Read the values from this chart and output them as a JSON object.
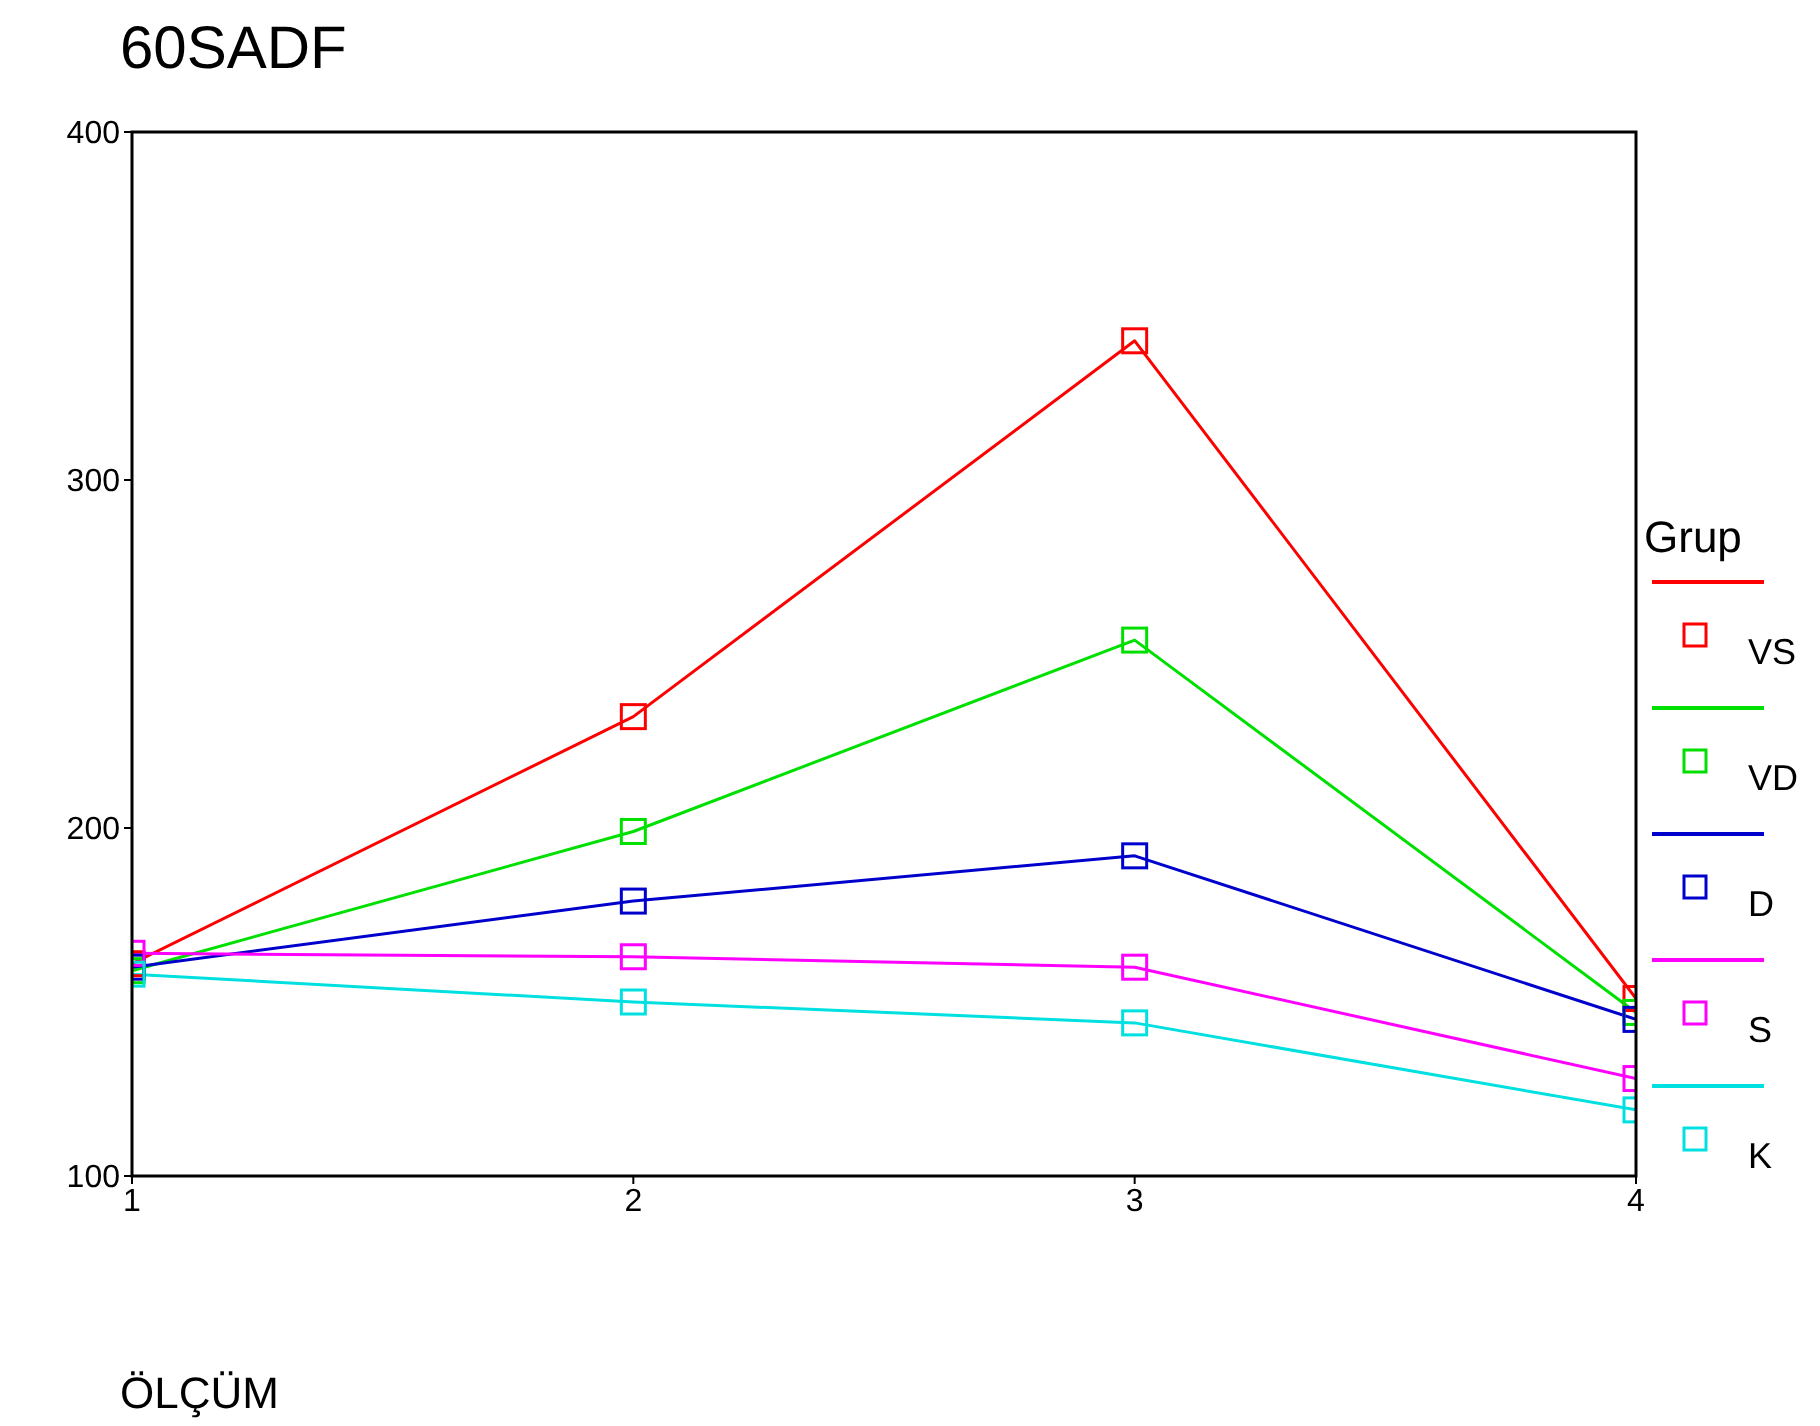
{
  "chart_data": {
    "type": "line",
    "title": "60SADF",
    "xlabel": "ÖLÇÜM",
    "legend_title": "Grup",
    "x": [
      1,
      2,
      3,
      4
    ],
    "xlim": [
      1,
      4
    ],
    "xticks": [
      1,
      2,
      3,
      4
    ],
    "ylim": [
      100,
      400
    ],
    "yticks": [
      100,
      200,
      300,
      400
    ],
    "grid": false,
    "legend": "right",
    "marker": "square",
    "line_style": "solid",
    "series": [
      {
        "name": "VS",
        "color": "#ff0000",
        "values": [
          161,
          232,
          340,
          151
        ]
      },
      {
        "name": "VD",
        "color": "#00e000",
        "values": [
          159,
          199,
          254,
          147
        ]
      },
      {
        "name": "D",
        "color": "#0000cc",
        "values": [
          160,
          179,
          192,
          145
        ]
      },
      {
        "name": "S",
        "color": "#ff00ff",
        "values": [
          164,
          163,
          160,
          128
        ]
      },
      {
        "name": "K",
        "color": "#00e0e0",
        "values": [
          158,
          150,
          144,
          119
        ]
      }
    ]
  }
}
